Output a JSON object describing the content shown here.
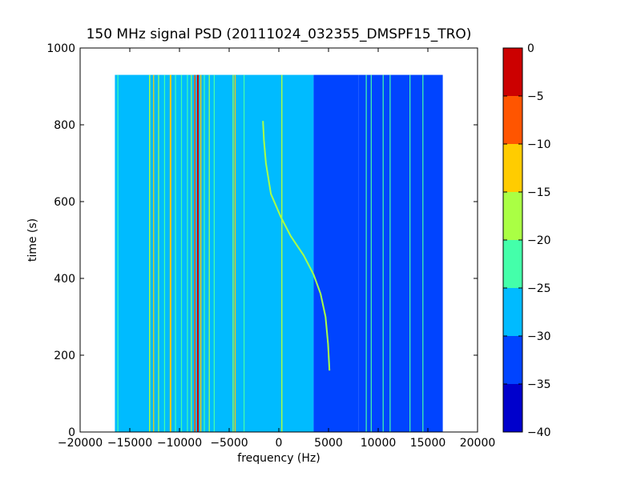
{
  "chart_data": {
    "type": "heatmap",
    "title": "150 MHz signal PSD (20111024_032355_DMSPF15_TRO)",
    "xlabel": "frequency (Hz)",
    "ylabel": "time (s)",
    "xlim": [
      -20000,
      20000
    ],
    "ylim": [
      0,
      1000
    ],
    "xticks": [
      -20000,
      -15000,
      -10000,
      -5000,
      0,
      5000,
      10000,
      15000,
      20000
    ],
    "xtick_labels": [
      "−20000",
      "−15000",
      "−10000",
      "−5000",
      "0",
      "5000",
      "10000",
      "15000",
      "20000"
    ],
    "yticks": [
      0,
      200,
      400,
      600,
      800,
      1000
    ],
    "ytick_labels": [
      "0",
      "200",
      "400",
      "600",
      "800",
      "1000"
    ],
    "data_extent": {
      "freq": [
        -16500,
        16500
      ],
      "time": [
        0,
        930
      ]
    },
    "colorbar": {
      "levels": [
        {
          "min": -40,
          "max": -35,
          "color": "#0000cc"
        },
        {
          "min": -35,
          "max": -30,
          "color": "#0044ff"
        },
        {
          "min": -30,
          "max": -25,
          "color": "#00bbff"
        },
        {
          "min": -25,
          "max": -20,
          "color": "#44ffaa"
        },
        {
          "min": -20,
          "max": -15,
          "color": "#aaff44"
        },
        {
          "min": -15,
          "max": -10,
          "color": "#ffcc00"
        },
        {
          "min": -10,
          "max": -5,
          "color": "#ff5500"
        },
        {
          "min": -5,
          "max": 0,
          "color": "#cc0000"
        }
      ],
      "ticks": [
        0,
        -5,
        -10,
        -15,
        -20,
        -25,
        -30,
        -35,
        -40
      ],
      "tick_labels": [
        "0",
        "−5",
        "−10",
        "−15",
        "−20",
        "−25",
        "−30",
        "−35",
        "−40"
      ]
    },
    "background_regions": [
      {
        "freq": [
          -16500,
          3500
        ],
        "level": -27.5
      },
      {
        "freq": [
          3500,
          8000
        ],
        "level": -30.5
      },
      {
        "freq": [
          8000,
          16500
        ],
        "level": -33
      }
    ],
    "lines": [
      {
        "freq": -16200,
        "level": -24,
        "width": 80
      },
      {
        "freq": -13000,
        "level": -17,
        "width": 120
      },
      {
        "freq": -12600,
        "level": -14,
        "width": 100
      },
      {
        "freq": -12100,
        "level": -17,
        "width": 100
      },
      {
        "freq": -11500,
        "level": -22,
        "width": 100
      },
      {
        "freq": -10900,
        "level": -12,
        "width": 160
      },
      {
        "freq": -10400,
        "level": -22,
        "width": 100
      },
      {
        "freq": -9800,
        "level": -23,
        "width": 100
      },
      {
        "freq": -9200,
        "level": -24,
        "width": 80
      },
      {
        "freq": -8800,
        "level": -17,
        "width": 100
      },
      {
        "freq": -8450,
        "level": -8,
        "width": 120
      },
      {
        "freq": -8150,
        "level": -3,
        "width": 160
      },
      {
        "freq": -7850,
        "level": -12,
        "width": 100
      },
      {
        "freq": -7500,
        "level": -22,
        "width": 100
      },
      {
        "freq": -7000,
        "level": -18,
        "width": 100
      },
      {
        "freq": -6500,
        "level": -22,
        "width": 100
      },
      {
        "freq": -4600,
        "level": -18,
        "width": 100
      },
      {
        "freq": -4400,
        "level": -14,
        "width": 100
      },
      {
        "freq": -3500,
        "level": -22,
        "width": 90
      },
      {
        "freq": 300,
        "level": -16,
        "width": 120
      },
      {
        "freq": 8800,
        "level": -22,
        "width": 90
      },
      {
        "freq": 9300,
        "level": -20,
        "width": 90
      },
      {
        "freq": 10500,
        "level": -24,
        "width": 80
      },
      {
        "freq": 11200,
        "level": -24,
        "width": 80
      },
      {
        "freq": 13200,
        "level": -24,
        "width": 80
      },
      {
        "freq": 14500,
        "level": -24,
        "width": 80
      }
    ],
    "chirp": {
      "level": -17,
      "points": [
        [
          5100,
          160
        ],
        [
          4950,
          230
        ],
        [
          4700,
          300
        ],
        [
          4200,
          360
        ],
        [
          3500,
          410
        ],
        [
          2500,
          460
        ],
        [
          1200,
          510
        ],
        [
          200,
          560
        ],
        [
          -800,
          620
        ],
        [
          -1300,
          700
        ],
        [
          -1500,
          760
        ],
        [
          -1600,
          810
        ]
      ]
    }
  }
}
